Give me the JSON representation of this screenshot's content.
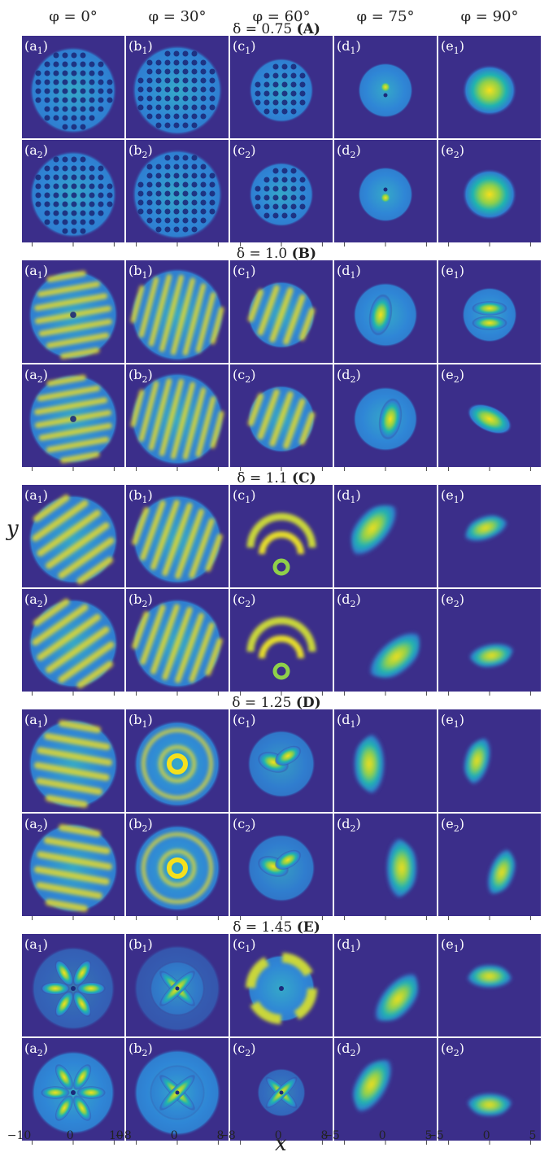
{
  "figure": {
    "columns": [
      {
        "prefix": "φ = ",
        "value": "0°",
        "letter": "a"
      },
      {
        "prefix": "φ = ",
        "value": "30°",
        "letter": "b"
      },
      {
        "prefix": "φ = ",
        "value": "60°",
        "letter": "c"
      },
      {
        "prefix": "φ = ",
        "value": "75°",
        "letter": "d"
      },
      {
        "prefix": "φ = ",
        "value": "90°",
        "letter": "e"
      }
    ],
    "groups": [
      {
        "delta": "δ = 0.75",
        "tag": "(A)"
      },
      {
        "delta": "δ = 1.0",
        "tag": "(B)"
      },
      {
        "delta": "δ = 1.1",
        "tag": "(C)"
      },
      {
        "delta": "δ = 1.25",
        "tag": "(D)"
      },
      {
        "delta": "δ = 1.45",
        "tag": "(E)"
      }
    ],
    "ylabel": "y",
    "xlabel": "x",
    "xticks": [
      [
        "−10",
        "0",
        "10"
      ],
      [
        "−8",
        "0",
        "8"
      ],
      [
        "−8",
        "0",
        "8"
      ],
      [
        "−5",
        "0",
        "5"
      ],
      [
        "−5",
        "0",
        "5"
      ]
    ],
    "colors": {
      "background": "#3b2e8a",
      "low": "#2f7fd0",
      "mid": "#20b3b0",
      "high": "#f5e01c",
      "divider": "#ffffff"
    }
  }
}
